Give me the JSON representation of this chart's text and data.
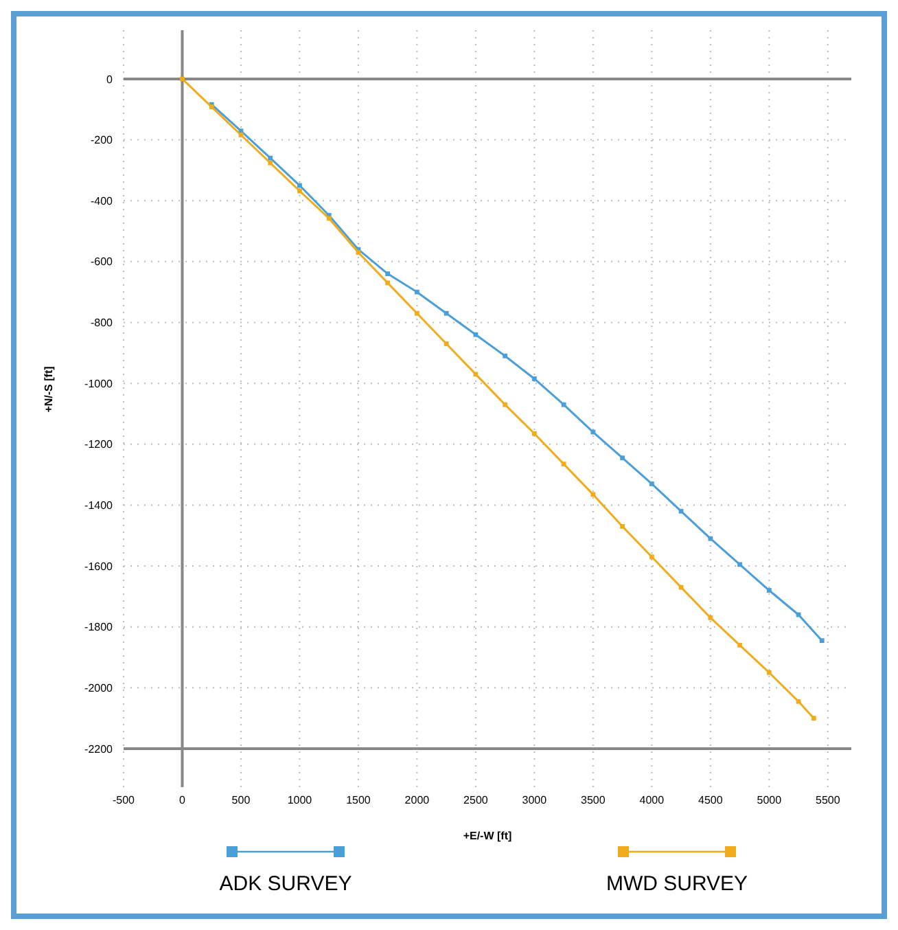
{
  "chart_data": {
    "type": "line",
    "xlabel": "+E/-W [ft]",
    "ylabel": "+N/-S [ft]",
    "xlim": [
      -500,
      5700
    ],
    "ylim": [
      -2200,
      160
    ],
    "xticks": [
      -500,
      0,
      500,
      1000,
      1500,
      2000,
      2500,
      3000,
      3500,
      4000,
      4500,
      5000,
      5500
    ],
    "yticks": [
      0,
      -200,
      -400,
      -600,
      -800,
      -1000,
      -1200,
      -1400,
      -1600,
      -1800,
      -2000,
      -2200
    ],
    "grid": true,
    "legend": "bottom",
    "marker": "square",
    "line_style": "solid",
    "series": [
      {
        "name": "ADK SURVEY",
        "color": "#4a9fd8",
        "x": [
          250,
          500,
          750,
          1000,
          1250,
          1500,
          1750,
          2000,
          2250,
          2500,
          2750,
          3000,
          3250,
          3500,
          3750,
          4000,
          4250,
          4500,
          4750,
          5000,
          5250,
          5450
        ],
        "values": [
          -84,
          -171,
          -260,
          -350,
          -448,
          -560,
          -640,
          -700,
          -770,
          -840,
          -910,
          -985,
          -1070,
          -1160,
          -1245,
          -1330,
          -1420,
          -1510,
          -1595,
          -1680,
          -1760,
          -1845
        ]
      },
      {
        "name": "MWD SURVEY",
        "color": "#f0ac1c",
        "x": [
          0,
          250,
          500,
          750,
          1000,
          1250,
          1500,
          1750,
          2000,
          2250,
          2500,
          2750,
          3000,
          3250,
          3500,
          3750,
          4000,
          4250,
          4500,
          4750,
          5000,
          5250,
          5380
        ],
        "values": [
          0,
          -92,
          -184,
          -276,
          -368,
          -458,
          -570,
          -670,
          -770,
          -870,
          -970,
          -1070,
          -1165,
          -1265,
          -1365,
          -1470,
          -1570,
          -1670,
          -1770,
          -1860,
          -1950,
          -2045,
          -2100
        ]
      }
    ]
  }
}
